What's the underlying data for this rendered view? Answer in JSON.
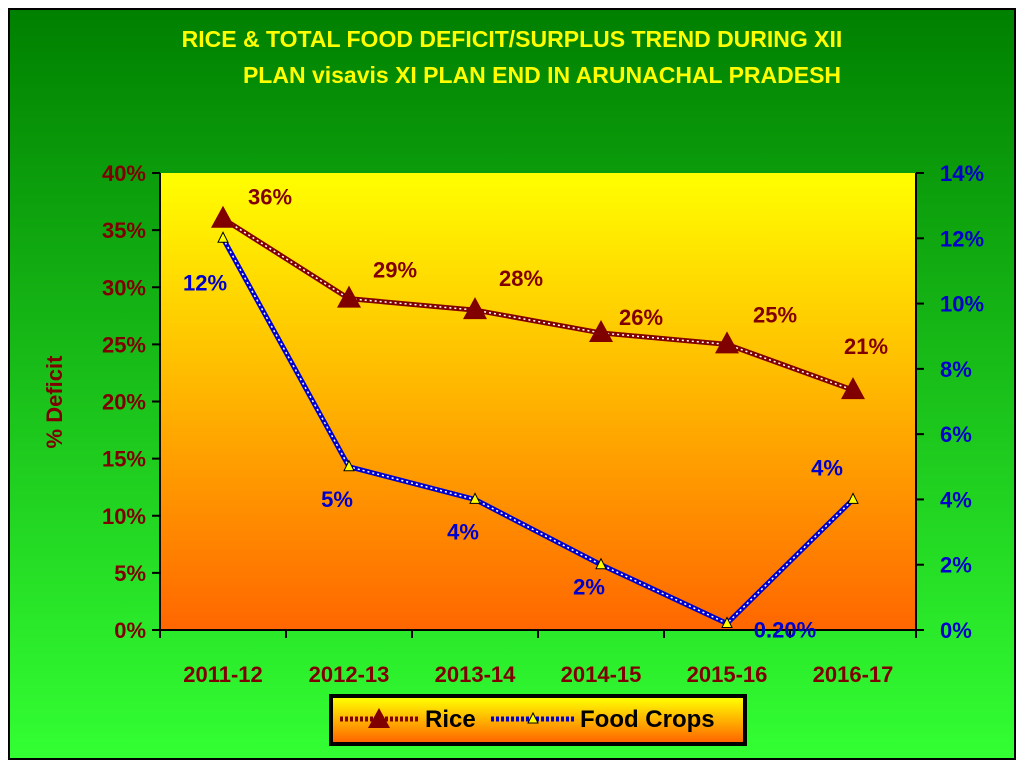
{
  "colors": {
    "title": "#FFFF00",
    "rice": "#800000",
    "food": "#0000CC",
    "bg_top": "#008000",
    "bg_bottom": "#33FF33",
    "plot_top": "#FFFF00",
    "plot_bottom": "#FF6600"
  },
  "chart_data": {
    "type": "line",
    "title_line1": "RICE & TOTAL FOOD DEFICIT/SURPLUS TREND DURING XII",
    "title_line2": "PLAN visavis XI PLAN END IN ARUNACHAL PRADESH",
    "ylabel": "% Deficit",
    "categories": [
      "2011-12",
      "2012-13",
      "2013-14",
      "2014-15",
      "2015-16",
      "2016-17"
    ],
    "y_left": {
      "min": 0,
      "max": 40,
      "ticks": [
        "0%",
        "5%",
        "10%",
        "15%",
        "20%",
        "25%",
        "30%",
        "35%",
        "40%"
      ]
    },
    "y_right": {
      "min": 0,
      "max": 14,
      "ticks": [
        "0%",
        "2%",
        "4%",
        "6%",
        "8%",
        "10%",
        "12%",
        "14%"
      ]
    },
    "series": [
      {
        "name": "Rice",
        "axis": "left",
        "values": [
          36,
          29,
          28,
          26,
          25,
          21
        ],
        "labels": [
          "36%",
          "29%",
          "28%",
          "26%",
          "25%",
          "21%"
        ]
      },
      {
        "name": "Food Crops",
        "axis": "right",
        "values": [
          12,
          5,
          4,
          2,
          0.2,
          4
        ],
        "labels": [
          "12%",
          "5%",
          "4%",
          "2%",
          "0.20%",
          "4%"
        ]
      }
    ],
    "legend": {
      "position": "bottom",
      "items": [
        "Rice",
        "Food Crops"
      ]
    }
  }
}
